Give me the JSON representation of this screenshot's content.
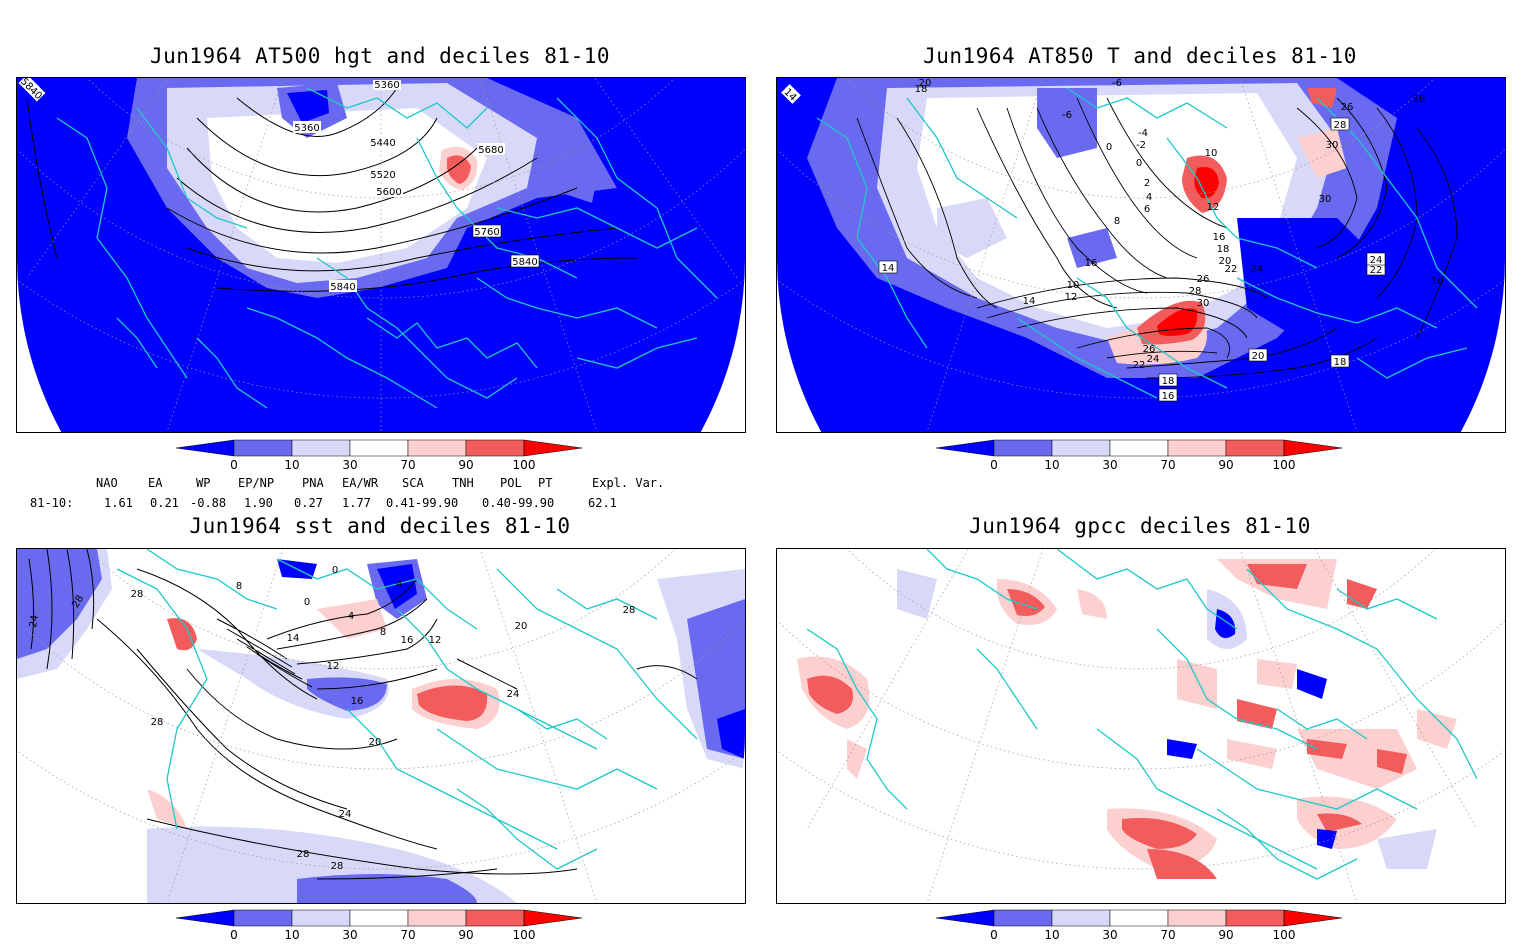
{
  "panels": [
    {
      "id": "p1",
      "title": "Jun1964 AT500 hgt and deciles 81-10",
      "contour_labels": [
        "5840",
        "5360",
        "5440",
        "5520",
        "5600",
        "5680",
        "5760",
        "5840",
        "5840",
        "5360"
      ]
    },
    {
      "id": "p2",
      "title": "Jun1964 AT850 T and deciles 81-10",
      "contour_labels": [
        "14",
        "18",
        "20",
        "-6",
        "-6",
        "-4",
        "-2",
        "0",
        "0",
        "2",
        "4",
        "6",
        "8",
        "10",
        "12",
        "14",
        "16",
        "10",
        "12",
        "14",
        "16",
        "18",
        "20",
        "22",
        "24",
        "26",
        "28",
        "30",
        "26",
        "24",
        "22",
        "18",
        "16",
        "18",
        "20",
        "22",
        "24",
        "16",
        "26",
        "28",
        "30",
        "30",
        "18"
      ]
    },
    {
      "id": "p3",
      "title": "Jun1964 sst and deciles 81-10",
      "contour_labels": [
        "24",
        "28",
        "28",
        "0",
        "4",
        "8",
        "0",
        "4",
        "8",
        "12",
        "12",
        "14",
        "16",
        "16",
        "20",
        "20",
        "24",
        "28",
        "28",
        "28",
        "24",
        "28"
      ]
    },
    {
      "id": "p4",
      "title": "Jun1964 gpcc deciles 81-10",
      "contour_labels": []
    }
  ],
  "colorbar": {
    "ticks": [
      "0",
      "10",
      "30",
      "70",
      "90",
      "100"
    ],
    "colors": {
      "c0": "#0000ff",
      "c1": "#6a6af0",
      "c2": "#d8d8f8",
      "c3": "#ffffff",
      "c4": "#fdd0d0",
      "c5": "#f25c5c",
      "c6": "#ff0000"
    }
  },
  "indices": {
    "headers": [
      "NAO",
      "EA",
      "WP",
      "EP/NP",
      "PNA",
      "EA/WR",
      "SCA",
      "TNH",
      "POL",
      "PT",
      "Expl. Var."
    ],
    "row_label": "81-10:",
    "values": [
      "1.61",
      "0.21",
      "-0.88",
      "1.90",
      "0.27",
      "1.77",
      "0.41-99.90",
      "0.40-99.90",
      "62.1"
    ]
  },
  "colors": {
    "coast": "#1ec8c8",
    "deep_blue": "#0000ff",
    "mid_blue": "#6a6af0",
    "light_blue": "#d8d8f8",
    "light_red": "#fdd0d0",
    "mid_red": "#f25c5c",
    "deep_red": "#ff0000"
  }
}
